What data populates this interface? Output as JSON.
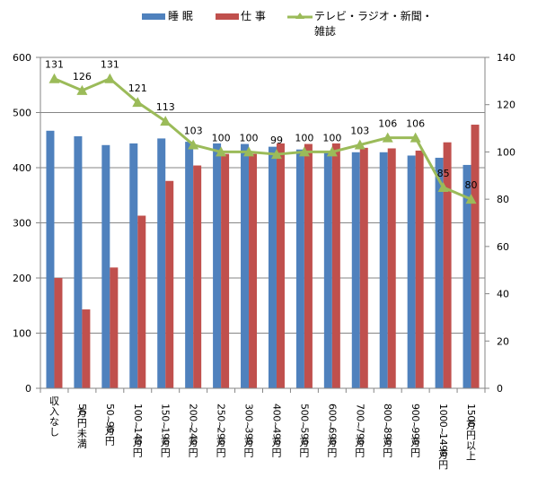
{
  "chart_data": {
    "type": "bar",
    "title": "",
    "xlabel": "",
    "ylabel": "",
    "ylabel_right": "",
    "ylim": [
      0,
      600
    ],
    "yticks": [
      0,
      100,
      200,
      300,
      400,
      500,
      600
    ],
    "ylim_right": [
      0,
      140
    ],
    "yticks_right": [
      0,
      20,
      40,
      60,
      80,
      100,
      120,
      140
    ],
    "grid": true,
    "legend_position": "top",
    "categories": [
      "収入なし",
      "50万円未満",
      "50~99万円",
      "100~149万円",
      "150~199万円",
      "200~249万円",
      "250~299万円",
      "300~399万円",
      "400~499万円",
      "500~599万円",
      "600~699万円",
      "700~799万円",
      "800~899万円",
      "900~999万円",
      "1000~1499万円",
      "1500万円以上"
    ],
    "series": [
      {
        "name": "睡 眠",
        "type": "bar",
        "axis": "left",
        "color": "#4F81BD",
        "values": [
          467,
          457,
          441,
          444,
          453,
          447,
          444,
          443,
          438,
          433,
          430,
          428,
          428,
          422,
          418,
          405
        ]
      },
      {
        "name": "仕 事",
        "type": "bar",
        "axis": "left",
        "color": "#C0504D",
        "values": [
          200,
          143,
          219,
          313,
          376,
          404,
          425,
          425,
          444,
          443,
          444,
          436,
          435,
          431,
          446,
          478
        ]
      },
      {
        "name": "テレビ・ラジオ・新聞・雑誌",
        "legend_lines": [
          "テレビ・ラジオ・新聞・",
          "雑誌"
        ],
        "type": "line",
        "axis": "right",
        "color": "#9BBB59",
        "marker": "triangle",
        "values": [
          131,
          126,
          131,
          121,
          113,
          103,
          100,
          100,
          99,
          100,
          100,
          103,
          106,
          106,
          85,
          80
        ],
        "data_labels": [
          "131",
          "126",
          "131",
          "121",
          "113",
          "103",
          "100",
          "100",
          "99",
          "100",
          "100",
          "103",
          "106",
          "106",
          "85",
          "80"
        ]
      }
    ]
  }
}
